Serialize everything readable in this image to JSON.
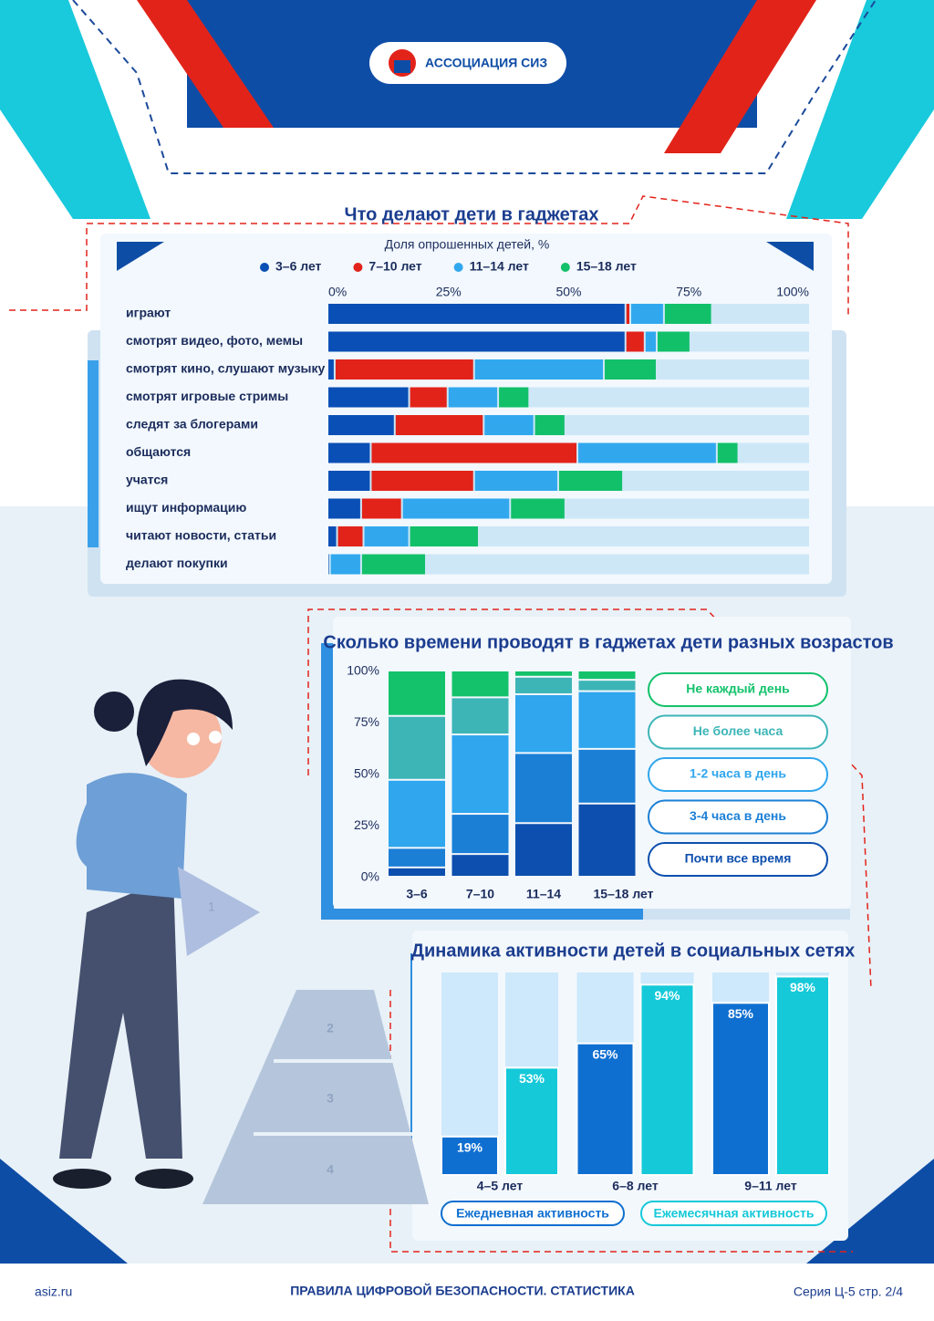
{
  "header": {
    "logo_text": "АССОЦИАЦИЯ СИЗ"
  },
  "chart_data": [
    {
      "type": "stacked_barh",
      "title": "Что делают дети в гаджетах",
      "x_label": "Доля опрошенных детей, %",
      "categories": [
        "играют",
        "смотрят видео, фото, мемы",
        "смотрят кино, слушают музыку",
        "смотрят игровые стримы",
        "следят за блогерами",
        "общаются",
        "учатся",
        "ищут информацию",
        "читают новости, статьи",
        "делают покупки"
      ],
      "series": [
        {
          "name": "3–6 лет",
          "color": "#0a4fb5",
          "values": [
            62,
            62,
            1.5,
            17,
            14,
            9,
            9,
            7,
            2,
            0.5
          ]
        },
        {
          "name": "7–10 лет",
          "color": "#e2231a",
          "values": [
            1,
            4,
            29,
            8,
            18.5,
            43,
            21.5,
            8.5,
            5.5,
            0
          ]
        },
        {
          "name": "11–14 лет",
          "color": "#31a8ee",
          "values": [
            7,
            2.5,
            27,
            10.5,
            10.5,
            29,
            17.5,
            22.5,
            9.5,
            6.5
          ]
        },
        {
          "name": "15–18 лет",
          "color": "#12c06a",
          "values": [
            10,
            7,
            11,
            6.5,
            6.5,
            4.5,
            13.5,
            11.5,
            14.5,
            13.5
          ]
        }
      ],
      "xlim": [
        0,
        100
      ],
      "xticks": [
        {
          "value": 0,
          "label": "0%"
        },
        {
          "value": 25,
          "label": "25%"
        },
        {
          "value": 50,
          "label": "50%"
        },
        {
          "value": 75,
          "label": "75%"
        },
        {
          "value": 100,
          "label": "100%"
        }
      ],
      "legend": "top"
    },
    {
      "type": "stacked_bar",
      "title": "Сколько времени проводят в гаджетах дети разных возрастов",
      "categories": [
        "3–6",
        "7–10",
        "11–14",
        "15–18 лет"
      ],
      "series": [
        {
          "name": "Почти все время",
          "color": "#0d4fae",
          "values": [
            4.5,
            11,
            26,
            35.5
          ]
        },
        {
          "name": "3-4 часа в день",
          "color": "#1b7fd6",
          "values": [
            9.5,
            19.5,
            34,
            26.5
          ]
        },
        {
          "name": "1-2 часа в день",
          "color": "#2fa6ee",
          "values": [
            33,
            38.5,
            28.5,
            28
          ]
        },
        {
          "name": "Не более часа",
          "color": "#3db5b7",
          "values": [
            31,
            18,
            8.5,
            5.5
          ]
        },
        {
          "name": "Не каждый день",
          "color": "#13c26b",
          "values": [
            22,
            13,
            3,
            4.5
          ]
        }
      ],
      "ylim": [
        0,
        100
      ],
      "yticks": [
        {
          "value": 0,
          "label": "0%"
        },
        {
          "value": 25,
          "label": "25%"
        },
        {
          "value": 50,
          "label": "50%"
        },
        {
          "value": 75,
          "label": "75%"
        },
        {
          "value": 100,
          "label": "100%"
        }
      ],
      "legend": "right"
    },
    {
      "type": "grouped_bar",
      "title": "Динамика активности детей в социальных сетях",
      "categories": [
        "4–5 лет",
        "6–8 лет",
        "9–11 лет"
      ],
      "series": [
        {
          "name": "Ежедневная активность",
          "color": "#0f6fd0",
          "values": [
            19,
            65,
            85
          ],
          "value_labels": [
            "19%",
            "65%",
            "85%"
          ]
        },
        {
          "name": "Ежемесячная активность",
          "color": "#15c9d9",
          "values": [
            53,
            94,
            98
          ],
          "value_labels": [
            "53%",
            "94%",
            "98%"
          ]
        }
      ],
      "ylim": [
        0,
        100
      ],
      "legend": "bottom"
    }
  ],
  "illustration": {
    "labels": [
      "1",
      "2",
      "3",
      "4"
    ]
  },
  "footer": {
    "site": "asiz.ru",
    "title": "ПРАВИЛА ЦИФРОВОЙ БЕЗОПАСНОСТИ. СТАТИСТИКА",
    "page": "Серия Ц-5 стр. 2/4"
  }
}
